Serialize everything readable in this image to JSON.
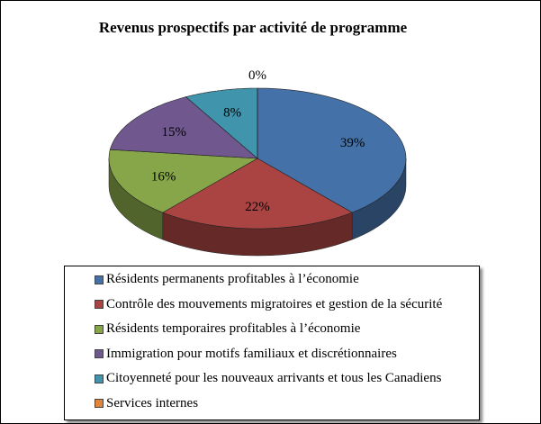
{
  "chart_data": {
    "type": "pie",
    "style": "3d",
    "title": "Revenus prospectifs par activité de programme",
    "start_angle": "top",
    "direction": "clockwise",
    "legend_position": "bottom",
    "slices": [
      {
        "label": "Résidents permanents profitables à l’économie",
        "value": 39,
        "data_label": "39%",
        "color": "#4472A8"
      },
      {
        "label": "Contrôle des mouvements migratoires et gestion de la sécurité",
        "value": 22,
        "data_label": "22%",
        "color": "#A94442"
      },
      {
        "label": "Résidents temporaires profitables à l’économie",
        "value": 16,
        "data_label": "16%",
        "color": "#87A64A"
      },
      {
        "label": "Immigration pour motifs familiaux et discrétionnaires",
        "value": 15,
        "data_label": "15%",
        "color": "#70588F"
      },
      {
        "label": "Citoyenneté pour les nouveaux arrivants et tous les Canadiens",
        "value": 8,
        "data_label": "8%",
        "color": "#4094AC"
      },
      {
        "label": "Services internes",
        "value": 0,
        "data_label": "0%",
        "color": "#E0843A"
      }
    ]
  }
}
